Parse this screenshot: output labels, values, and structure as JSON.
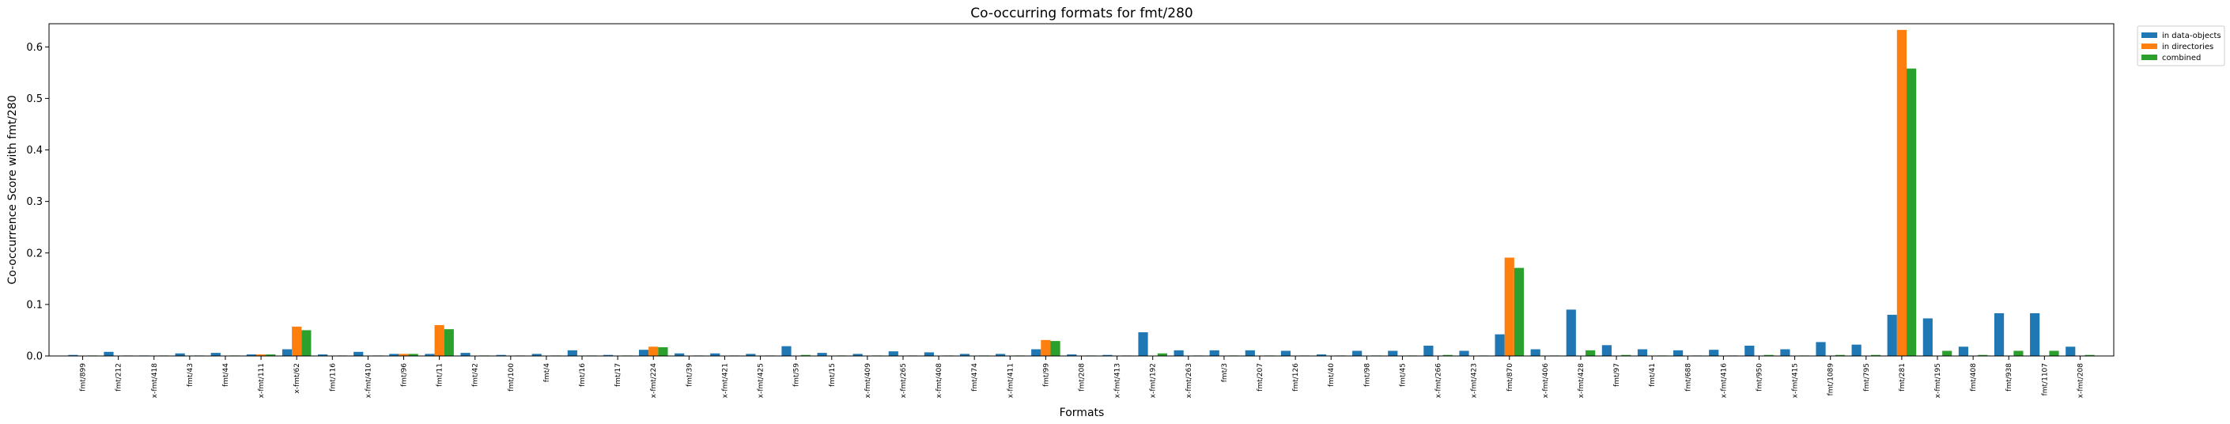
{
  "chart_data": {
    "type": "bar",
    "title": "Co-occurring formats for fmt/280",
    "xlabel": "Formats",
    "ylabel": "Co-occurrence Score with fmt/280",
    "ylim": [
      0,
      0.645
    ],
    "yticks": [
      "0.0",
      "0.1",
      "0.2",
      "0.3",
      "0.4",
      "0.5",
      "0.6"
    ],
    "legend_position": "outside-top-right",
    "grid": false,
    "categories": [
      "fmt/899",
      "fmt/212",
      "x-fmt/418",
      "fmt/43",
      "fmt/44",
      "x-fmt/111",
      "x-fmt/62",
      "fmt/116",
      "x-fmt/410",
      "fmt/96",
      "fmt/11",
      "fmt/42",
      "fmt/100",
      "fmt/4",
      "fmt/16",
      "fmt/17",
      "x-fmt/224",
      "fmt/39",
      "x-fmt/421",
      "x-fmt/425",
      "fmt/59",
      "fmt/15",
      "x-fmt/409",
      "x-fmt/265",
      "x-fmt/408",
      "fmt/474",
      "x-fmt/411",
      "fmt/99",
      "fmt/208",
      "x-fmt/413",
      "x-fmt/192",
      "x-fmt/263",
      "fmt/3",
      "fmt/207",
      "fmt/126",
      "fmt/40",
      "fmt/98",
      "fmt/45",
      "x-fmt/266",
      "x-fmt/423",
      "fmt/870",
      "x-fmt/406",
      "x-fmt/428",
      "fmt/97",
      "fmt/41",
      "fmt/688",
      "x-fmt/416",
      "fmt/950",
      "x-fmt/415",
      "fmt/1089",
      "fmt/795",
      "fmt/281",
      "x-fmt/195",
      "fmt/408",
      "fmt/938",
      "fmt/1107",
      "x-fmt/208"
    ],
    "series": [
      {
        "name": "in data-objects",
        "color": "#1f77b4",
        "values": [
          0.002,
          0.008,
          0.001,
          0.005,
          0.006,
          0.003,
          0.013,
          0.003,
          0.008,
          0.004,
          0.004,
          0.006,
          0.002,
          0.004,
          0.011,
          0.002,
          0.012,
          0.005,
          0.005,
          0.004,
          0.019,
          0.006,
          0.004,
          0.009,
          0.007,
          0.004,
          0.004,
          0.013,
          0.003,
          0.002,
          0.046,
          0.011,
          0.011,
          0.011,
          0.01,
          0.003,
          0.01,
          0.01,
          0.02,
          0.01,
          0.042,
          0.013,
          0.09,
          0.021,
          0.013,
          0.011,
          0.012,
          0.02,
          0.013,
          0.027,
          0.022,
          0.08,
          0.073,
          0.018,
          0.083,
          0.083,
          0.018
        ]
      },
      {
        "name": "in directories",
        "color": "#ff7f0e",
        "values": [
          0,
          0,
          0,
          0,
          0,
          0.003,
          0.057,
          0,
          0,
          0.004,
          0.06,
          0,
          0,
          0,
          0,
          0,
          0.018,
          0,
          0,
          0,
          0,
          0,
          0,
          0,
          0,
          0,
          0,
          0.031,
          0,
          0,
          0,
          0,
          0,
          0,
          0,
          0,
          0,
          0,
          0,
          0,
          0.191,
          0,
          0,
          0,
          0,
          0,
          0,
          0,
          0,
          0,
          0,
          0.633,
          0,
          0,
          0,
          0,
          0
        ]
      },
      {
        "name": "combined",
        "color": "#2ca02c",
        "values": [
          0.001,
          0.001,
          0.001,
          0.001,
          0.001,
          0.003,
          0.05,
          0.001,
          0.001,
          0.004,
          0.052,
          0.001,
          0.001,
          0.001,
          0.001,
          0.001,
          0.017,
          0.001,
          0.001,
          0.001,
          0.002,
          0.001,
          0.001,
          0.001,
          0.001,
          0.001,
          0.001,
          0.029,
          0.001,
          0.001,
          0.005,
          0.001,
          0.001,
          0.001,
          0.001,
          0.001,
          0.001,
          0.001,
          0.002,
          0.001,
          0.171,
          0.001,
          0.011,
          0.002,
          0.001,
          0.001,
          0.001,
          0.002,
          0.001,
          0.002,
          0.002,
          0.558,
          0.01,
          0.002,
          0.01,
          0.01,
          0.002
        ]
      }
    ]
  }
}
